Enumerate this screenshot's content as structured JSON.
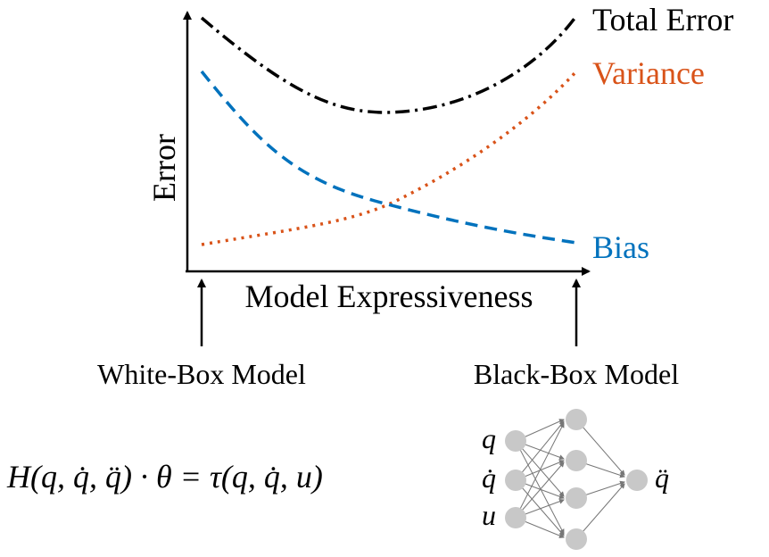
{
  "chart_data": {
    "type": "line",
    "xlabel": "Model Expressiveness",
    "ylabel": "Error",
    "grid": false,
    "series": [
      {
        "name": "Total Error",
        "color": "#000000",
        "dash": "dash-dot"
      },
      {
        "name": "Variance",
        "color": "#d95319",
        "dash": "dotted"
      },
      {
        "name": "Bias",
        "color": "#0072bd",
        "dash": "dashed"
      }
    ]
  },
  "endpoints": {
    "left_label": "White-Box Model",
    "right_label": "Black-Box Model"
  },
  "equation": {
    "text": "H(q, q̇, q̈) · θ = τ(q, q̇, u)"
  },
  "network": {
    "inputs": [
      "q",
      "q̇",
      "u"
    ],
    "output": "q̈",
    "node_color": "#c8c8c8",
    "edge_color": "#777777"
  }
}
